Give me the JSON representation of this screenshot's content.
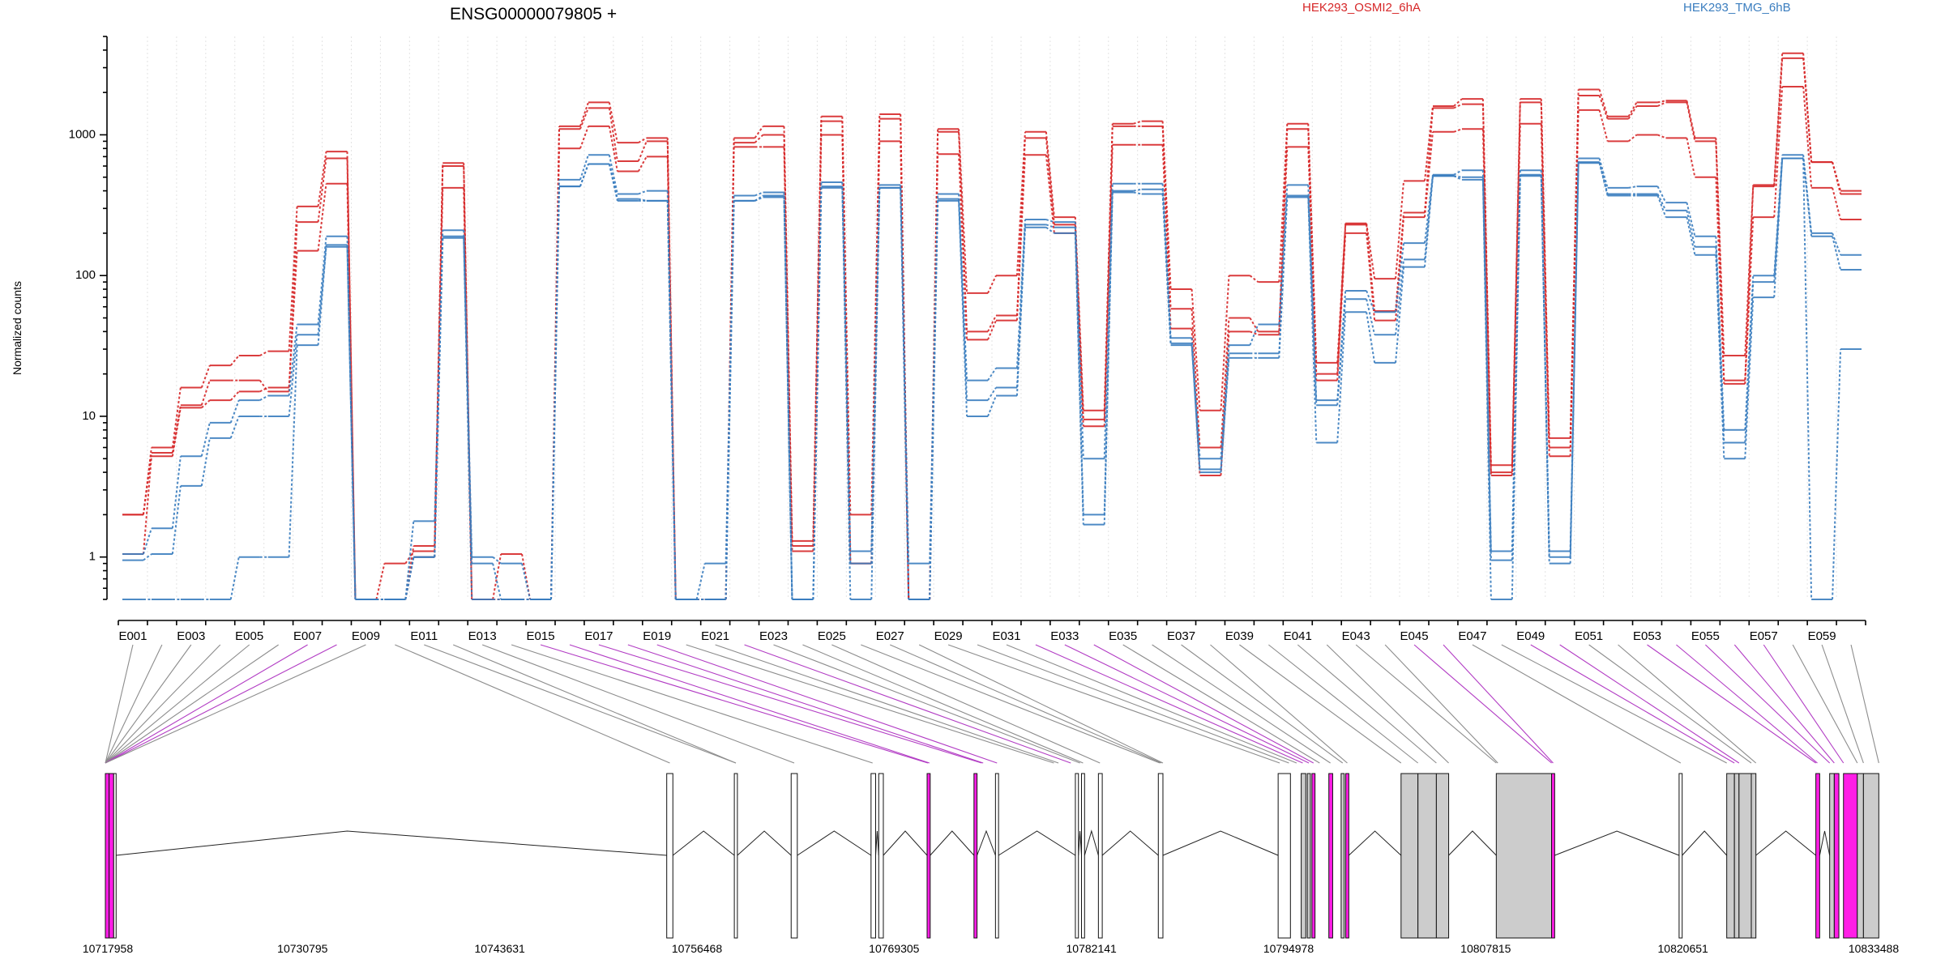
{
  "chart_data": {
    "type": "line",
    "title": "ENSG00000079805 +",
    "ylabel": "Normalized counts",
    "yscale": "log",
    "ylim": [
      0.5,
      5000
    ],
    "yticks": [
      1,
      10,
      100,
      1000
    ],
    "ytick_labels": [
      "1",
      "10",
      "100",
      "1000"
    ],
    "x_tick_labels": [
      "E001",
      "E003",
      "E005",
      "E007",
      "E009",
      "E011",
      "E013",
      "E015",
      "E017",
      "E019",
      "E021",
      "E023",
      "E025",
      "E027",
      "E029",
      "E031",
      "E033",
      "E035",
      "E037",
      "E039",
      "E041",
      "E043",
      "E045",
      "E047",
      "E049",
      "E051",
      "E053",
      "E055",
      "E057",
      "E059"
    ],
    "exons": [
      "E001",
      "E002",
      "E003",
      "E004",
      "E005",
      "E006",
      "E007",
      "E008",
      "E009",
      "E010",
      "E011",
      "E012",
      "E013",
      "E014",
      "E015",
      "E016",
      "E017",
      "E018",
      "E019",
      "E020",
      "E021",
      "E022",
      "E023",
      "E024",
      "E025",
      "E026",
      "E027",
      "E028",
      "E029",
      "E030",
      "E031",
      "E032",
      "E033",
      "E034",
      "E035",
      "E036",
      "E037",
      "E038",
      "E039",
      "E040",
      "E041",
      "E042",
      "E043",
      "E044",
      "E045",
      "E046",
      "E047",
      "E048",
      "E049",
      "E050",
      "E051",
      "E052",
      "E053",
      "E054",
      "E055",
      "E056",
      "E057",
      "E058",
      "E059",
      "E060"
    ],
    "legend": [
      {
        "name": "HEK293_OSMI2_6hA",
        "color": "#d62728"
      },
      {
        "name": "HEK293_TMG_6hB",
        "color": "#3a7dbf"
      }
    ],
    "series": [
      {
        "name": "HEK293_OSMI2_6hA rep1",
        "group": "HEK293_OSMI2_6hA",
        "color": "#d62728",
        "style": "dashed",
        "values": [
          2.0,
          6.0,
          16,
          23,
          27,
          29,
          310,
          760,
          0.5,
          0.5,
          1.2,
          630,
          0.5,
          1.05,
          0.5,
          1150,
          1700,
          880,
          950,
          0.5,
          0.5,
          950,
          1150,
          1.3,
          1350,
          2.0,
          1400,
          0.5,
          1100,
          75,
          100,
          1050,
          260,
          11,
          1200,
          1250,
          80,
          11,
          100,
          90,
          1200,
          24,
          235,
          95,
          470,
          1600,
          1800,
          4.5,
          1800,
          7,
          2100,
          1350,
          1700,
          1750,
          950,
          27,
          440,
          3800,
          640,
          400
        ]
      },
      {
        "name": "HEK293_OSMI2_6hA rep2",
        "group": "HEK293_OSMI2_6hA",
        "color": "#d62728",
        "style": "dashed",
        "values": [
          2.0,
          5.5,
          12,
          18,
          18,
          15,
          240,
          680,
          0.5,
          0.9,
          1.1,
          600,
          0.5,
          0.5,
          0.5,
          1100,
          1550,
          650,
          900,
          0.5,
          0.5,
          880,
          1000,
          1.2,
          1250,
          0.9,
          1300,
          0.5,
          1050,
          40,
          52,
          950,
          230,
          9.5,
          1150,
          1150,
          58,
          6,
          50,
          40,
          1100,
          20,
          230,
          56,
          280,
          1550,
          1650,
          4,
          1700,
          6,
          1900,
          1300,
          1600,
          1700,
          900,
          18,
          430,
          3500,
          640,
          380
        ]
      },
      {
        "name": "HEK293_OSMI2_6hA rep3",
        "group": "HEK293_OSMI2_6hA",
        "color": "#d62728",
        "style": "dashed",
        "values": [
          1.05,
          5.2,
          11.5,
          13,
          15,
          16,
          150,
          450,
          0.5,
          0.5,
          1.0,
          420,
          0.5,
          0.5,
          0.5,
          800,
          1150,
          550,
          700,
          0.5,
          0.5,
          820,
          820,
          1.1,
          1000,
          0.9,
          900,
          0.5,
          730,
          35,
          48,
          720,
          200,
          8.5,
          850,
          850,
          42,
          3.8,
          40,
          38,
          820,
          18,
          200,
          48,
          260,
          1050,
          1100,
          3.8,
          1200,
          5.2,
          1500,
          900,
          1000,
          950,
          500,
          17,
          260,
          2200,
          420,
          250
        ]
      },
      {
        "name": "HEK293_TMG_6hB rep1",
        "group": "HEK293_TMG_6hB",
        "color": "#3a7dbf",
        "style": "dashed",
        "values": [
          1.05,
          1.6,
          5.2,
          9,
          13,
          14,
          45,
          190,
          0.5,
          0.5,
          1.8,
          210,
          1.0,
          0.9,
          0.5,
          480,
          720,
          380,
          400,
          0.5,
          0.9,
          370,
          390,
          0.5,
          460,
          1.1,
          440,
          0.9,
          380,
          18,
          22,
          250,
          240,
          5,
          450,
          450,
          36,
          5,
          32,
          45,
          440,
          13,
          78,
          55,
          170,
          520,
          560,
          1.1,
          560,
          1.1,
          680,
          420,
          430,
          330,
          190,
          8,
          100,
          720,
          200,
          140
        ]
      },
      {
        "name": "HEK293_TMG_6hB rep2",
        "group": "HEK293_TMG_6hB",
        "color": "#3a7dbf",
        "style": "dashed",
        "values": [
          0.95,
          1.05,
          3.2,
          7,
          10,
          10,
          38,
          160,
          0.5,
          0.5,
          1.0,
          190,
          0.9,
          0.5,
          0.5,
          430,
          620,
          350,
          340,
          0.5,
          0.5,
          340,
          370,
          0.5,
          430,
          0.9,
          420,
          0.5,
          350,
          13,
          16,
          230,
          220,
          2.0,
          400,
          410,
          33,
          4,
          28,
          28,
          370,
          12,
          68,
          38,
          130,
          510,
          500,
          0.95,
          520,
          1.0,
          640,
          380,
          380,
          290,
          160,
          6.5,
          90,
          680,
          190,
          110
        ]
      },
      {
        "name": "HEK293_TMG_6hB rep3",
        "group": "HEK293_TMG_6hB",
        "color": "#3a7dbf",
        "style": "dashed",
        "values": [
          0.5,
          0.5,
          0.5,
          0.5,
          1.0,
          1.0,
          32,
          165,
          0.5,
          0.5,
          1.0,
          185,
          0.5,
          0.5,
          0.5,
          430,
          620,
          340,
          340,
          0.5,
          0.5,
          340,
          360,
          0.5,
          420,
          0.5,
          420,
          0.5,
          340,
          10,
          14,
          220,
          200,
          1.7,
          390,
          380,
          32,
          4.2,
          26,
          26,
          360,
          6.5,
          55,
          24,
          115,
          510,
          480,
          0.5,
          510,
          0.9,
          630,
          370,
          370,
          260,
          140,
          5,
          70,
          680,
          0.5,
          30
        ]
      }
    ],
    "genome_axis": {
      "tick_labels": [
        "10717958",
        "10730795",
        "10743631",
        "10756468",
        "10769305",
        "10782141",
        "10794978",
        "10807815",
        "10820651",
        "10833488"
      ],
      "start": 10717958,
      "end": 10833488
    },
    "exon_map": {
      "x_unit": "genomic position",
      "highlighted_color": "#ff1ee6",
      "gray_color": "#cccccc",
      "exons": [
        {
          "s": 10717958,
          "e": 10718200,
          "c": "m"
        },
        {
          "s": 10718200,
          "e": 10718500,
          "c": "m"
        },
        {
          "s": 10718500,
          "e": 10718650,
          "c": "w"
        },
        {
          "s": 10754500,
          "e": 10754900,
          "c": "w"
        },
        {
          "s": 10758900,
          "e": 10759100,
          "c": "w"
        },
        {
          "s": 10762600,
          "e": 10763000,
          "c": "w"
        },
        {
          "s": 10767800,
          "e": 10768100,
          "c": "w"
        },
        {
          "s": 10768300,
          "e": 10768600,
          "c": "w"
        },
        {
          "s": 10771450,
          "e": 10771650,
          "c": "m"
        },
        {
          "s": 10774500,
          "e": 10774700,
          "c": "m"
        },
        {
          "s": 10775900,
          "e": 10776100,
          "c": "w"
        },
        {
          "s": 10781100,
          "e": 10781300,
          "c": "w"
        },
        {
          "s": 10781500,
          "e": 10781700,
          "c": "w"
        },
        {
          "s": 10782600,
          "e": 10782850,
          "c": "w"
        },
        {
          "s": 10786500,
          "e": 10786800,
          "c": "w"
        },
        {
          "s": 10794300,
          "e": 10795100,
          "c": "w"
        },
        {
          "s": 10795800,
          "e": 10796100,
          "c": "g"
        },
        {
          "s": 10796200,
          "e": 10796400,
          "c": "g"
        },
        {
          "s": 10796500,
          "e": 10796700,
          "c": "m"
        },
        {
          "s": 10797600,
          "e": 10797850,
          "c": "m"
        },
        {
          "s": 10798400,
          "e": 10798600,
          "c": "g"
        },
        {
          "s": 10798700,
          "e": 10798900,
          "c": "m"
        },
        {
          "s": 10802300,
          "e": 10803400,
          "c": "g"
        },
        {
          "s": 10803400,
          "e": 10804600,
          "c": "g"
        },
        {
          "s": 10804600,
          "e": 10805400,
          "c": "g"
        },
        {
          "s": 10808500,
          "e": 10812100,
          "c": "g"
        },
        {
          "s": 10812100,
          "e": 10812300,
          "c": "m"
        },
        {
          "s": 10820400,
          "e": 10820600,
          "c": "w"
        },
        {
          "s": 10823500,
          "e": 10824000,
          "c": "g"
        },
        {
          "s": 10824000,
          "e": 10824300,
          "c": "g"
        },
        {
          "s": 10824300,
          "e": 10825100,
          "c": "g"
        },
        {
          "s": 10825100,
          "e": 10825400,
          "c": "g"
        },
        {
          "s": 10829300,
          "e": 10829550,
          "c": "m"
        },
        {
          "s": 10830200,
          "e": 10830500,
          "c": "g"
        },
        {
          "s": 10830500,
          "e": 10830800,
          "c": "m"
        },
        {
          "s": 10831100,
          "e": 10832000,
          "c": "m"
        },
        {
          "s": 10832000,
          "e": 10832400,
          "c": "g"
        },
        {
          "s": 10832400,
          "e": 10833400,
          "c": "g"
        }
      ],
      "connections": [
        {
          "exon": "E001",
          "g": 10717958,
          "c": "g"
        },
        {
          "exon": "E002",
          "g": 10717958,
          "c": "g"
        },
        {
          "exon": "E003",
          "g": 10717958,
          "c": "g"
        },
        {
          "exon": "E004",
          "g": 10717958,
          "c": "g"
        },
        {
          "exon": "E005",
          "g": 10717958,
          "c": "g"
        },
        {
          "exon": "E006",
          "g": 10717958,
          "c": "g"
        },
        {
          "exon": "E007",
          "g": 10717958,
          "c": "m"
        },
        {
          "exon": "E008",
          "g": 10717958,
          "c": "m"
        },
        {
          "exon": "E009",
          "g": 10717958,
          "c": "g"
        },
        {
          "exon": "E010",
          "g": 10754700,
          "c": "g"
        },
        {
          "exon": "E011",
          "g": 10759000,
          "c": "g"
        },
        {
          "exon": "E012",
          "g": 10759000,
          "c": "g"
        },
        {
          "exon": "E013",
          "g": 10762800,
          "c": "g"
        },
        {
          "exon": "E014",
          "g": 10767900,
          "c": "g"
        },
        {
          "exon": "E015",
          "g": 10771500,
          "c": "m"
        },
        {
          "exon": "E016",
          "g": 10771600,
          "c": "m"
        },
        {
          "exon": "E017",
          "g": 10775000,
          "c": "m"
        },
        {
          "exon": "E018",
          "g": 10775100,
          "c": "m"
        },
        {
          "exon": "E019",
          "g": 10776000,
          "c": "m"
        },
        {
          "exon": "E020",
          "g": 10779700,
          "c": "g"
        },
        {
          "exon": "E021",
          "g": 10780000,
          "c": "g"
        },
        {
          "exon": "E022",
          "g": 10780800,
          "c": "m"
        },
        {
          "exon": "E023",
          "g": 10781400,
          "c": "g"
        },
        {
          "exon": "E024",
          "g": 10781600,
          "c": "g"
        },
        {
          "exon": "E025",
          "g": 10782700,
          "c": "g"
        },
        {
          "exon": "E026",
          "g": 10786600,
          "c": "g"
        },
        {
          "exon": "E027",
          "g": 10786700,
          "c": "g"
        },
        {
          "exon": "E028",
          "g": 10786800,
          "c": "g"
        },
        {
          "exon": "E029",
          "g": 10794400,
          "c": "g"
        },
        {
          "exon": "E030",
          "g": 10795000,
          "c": "g"
        },
        {
          "exon": "E031",
          "g": 10795500,
          "c": "g"
        },
        {
          "exon": "E032",
          "g": 10795900,
          "c": "m"
        },
        {
          "exon": "E033",
          "g": 10796300,
          "c": "m"
        },
        {
          "exon": "E034",
          "g": 10796600,
          "c": "m"
        },
        {
          "exon": "E035",
          "g": 10797000,
          "c": "g"
        },
        {
          "exon": "E036",
          "g": 10797700,
          "c": "g"
        },
        {
          "exon": "E037",
          "g": 10798500,
          "c": "g"
        },
        {
          "exon": "E038",
          "g": 10798800,
          "c": "g"
        },
        {
          "exon": "E039",
          "g": 10802300,
          "c": "g"
        },
        {
          "exon": "E040",
          "g": 10803400,
          "c": "g"
        },
        {
          "exon": "E041",
          "g": 10804600,
          "c": "g"
        },
        {
          "exon": "E042",
          "g": 10805400,
          "c": "g"
        },
        {
          "exon": "E043",
          "g": 10808500,
          "c": "g"
        },
        {
          "exon": "E044",
          "g": 10808600,
          "c": "g"
        },
        {
          "exon": "E045",
          "g": 10812100,
          "c": "m"
        },
        {
          "exon": "E046",
          "g": 10812200,
          "c": "m"
        },
        {
          "exon": "E047",
          "g": 10820500,
          "c": "g"
        },
        {
          "exon": "E048",
          "g": 10823500,
          "c": "g"
        },
        {
          "exon": "E049",
          "g": 10824000,
          "c": "m"
        },
        {
          "exon": "E050",
          "g": 10824300,
          "c": "m"
        },
        {
          "exon": "E051",
          "g": 10825100,
          "c": "g"
        },
        {
          "exon": "E052",
          "g": 10825400,
          "c": "g"
        },
        {
          "exon": "E053",
          "g": 10829300,
          "c": "m"
        },
        {
          "exon": "E054",
          "g": 10829400,
          "c": "m"
        },
        {
          "exon": "E055",
          "g": 10830200,
          "c": "m"
        },
        {
          "exon": "E056",
          "g": 10830500,
          "c": "m"
        },
        {
          "exon": "E057",
          "g": 10831100,
          "c": "m"
        },
        {
          "exon": "E058",
          "g": 10832000,
          "c": "g"
        },
        {
          "exon": "E059",
          "g": 10832400,
          "c": "g"
        },
        {
          "exon": "E060",
          "g": 10833400,
          "c": "g"
        }
      ],
      "introns": [
        {
          "a": 10718650,
          "b": 10754500,
          "peak": 10733700
        },
        {
          "a": 10754900,
          "b": 10758900
        },
        {
          "a": 10759100,
          "b": 10762600
        },
        {
          "a": 10763000,
          "b": 10767800
        },
        {
          "a": 10768100,
          "b": 10768300
        },
        {
          "a": 10768600,
          "b": 10771450
        },
        {
          "a": 10771650,
          "b": 10774500
        },
        {
          "a": 10774700,
          "b": 10775900
        },
        {
          "a": 10776100,
          "b": 10781100
        },
        {
          "a": 10781300,
          "b": 10781500
        },
        {
          "a": 10781700,
          "b": 10782600
        },
        {
          "a": 10782850,
          "b": 10786500
        },
        {
          "a": 10786800,
          "b": 10794300
        },
        {
          "a": 10798900,
          "b": 10802300
        },
        {
          "a": 10805400,
          "b": 10808500
        },
        {
          "a": 10812300,
          "b": 10820400
        },
        {
          "a": 10820600,
          "b": 10823500
        },
        {
          "a": 10825400,
          "b": 10829300
        },
        {
          "a": 10829550,
          "b": 10830200
        }
      ]
    }
  }
}
